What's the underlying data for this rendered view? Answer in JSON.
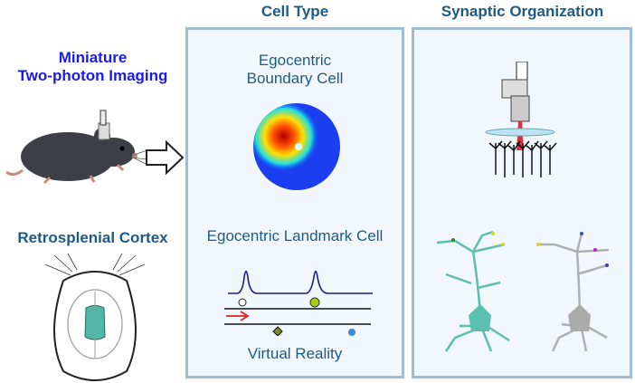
{
  "headers": {
    "cell_type": "Cell Type",
    "synaptic": "Synaptic Organization"
  },
  "left": {
    "imaging_line1": "Miniature",
    "imaging_line2": "Two-photon Imaging",
    "region": "Retrosplenial Cortex"
  },
  "cell_panel": {
    "ebc_line1": "Egocentric",
    "ebc_line2": "Boundary Cell",
    "elc": "Egocentric Landmark Cell",
    "vr": "Virtual Reality"
  },
  "colors": {
    "heading": "#1d5b87",
    "imaging_title": "#1a1aee",
    "panel_bg": "#f1f7fd",
    "panel_border": "#9dbdd4",
    "neuron_teal": "#5cbfb0",
    "neuron_gray": "#b0b0b0",
    "trace": "#1a1a8c",
    "arrow": "#e02020"
  }
}
